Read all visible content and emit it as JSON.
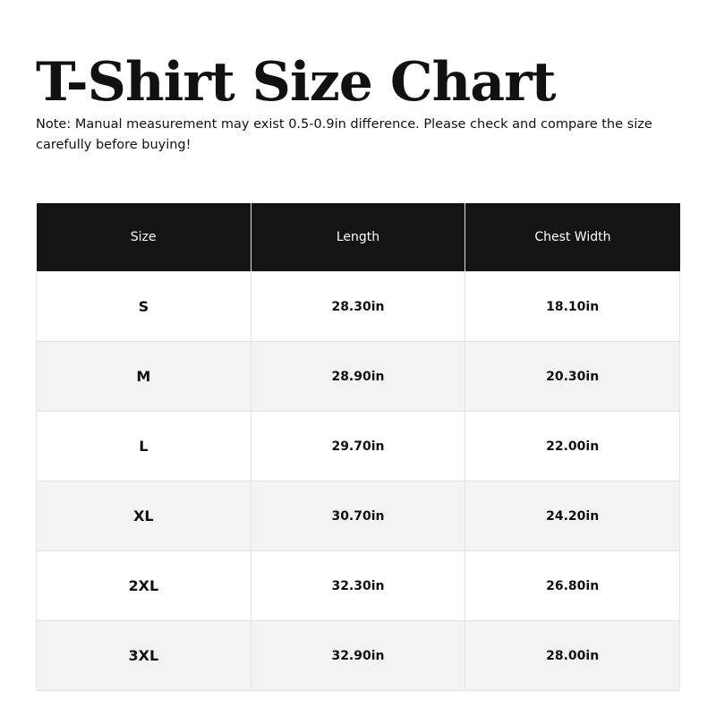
{
  "title": "T-Shirt Size Chart",
  "note": "Note: Manual measurement may exist 0.5-0.9in difference. Please check and compare the size carefully before buying!",
  "table": {
    "headers": [
      "Size",
      "Length",
      "Chest Width"
    ],
    "rows": [
      [
        "S",
        "28.30in",
        "18.10in"
      ],
      [
        "M",
        "28.90in",
        "20.30in"
      ],
      [
        "L",
        "29.70in",
        "22.00in"
      ],
      [
        "XL",
        "30.70in",
        "24.20in"
      ],
      [
        "2XL",
        "32.30in",
        "26.80in"
      ],
      [
        "3XL",
        "32.90in",
        "28.00in"
      ]
    ]
  }
}
